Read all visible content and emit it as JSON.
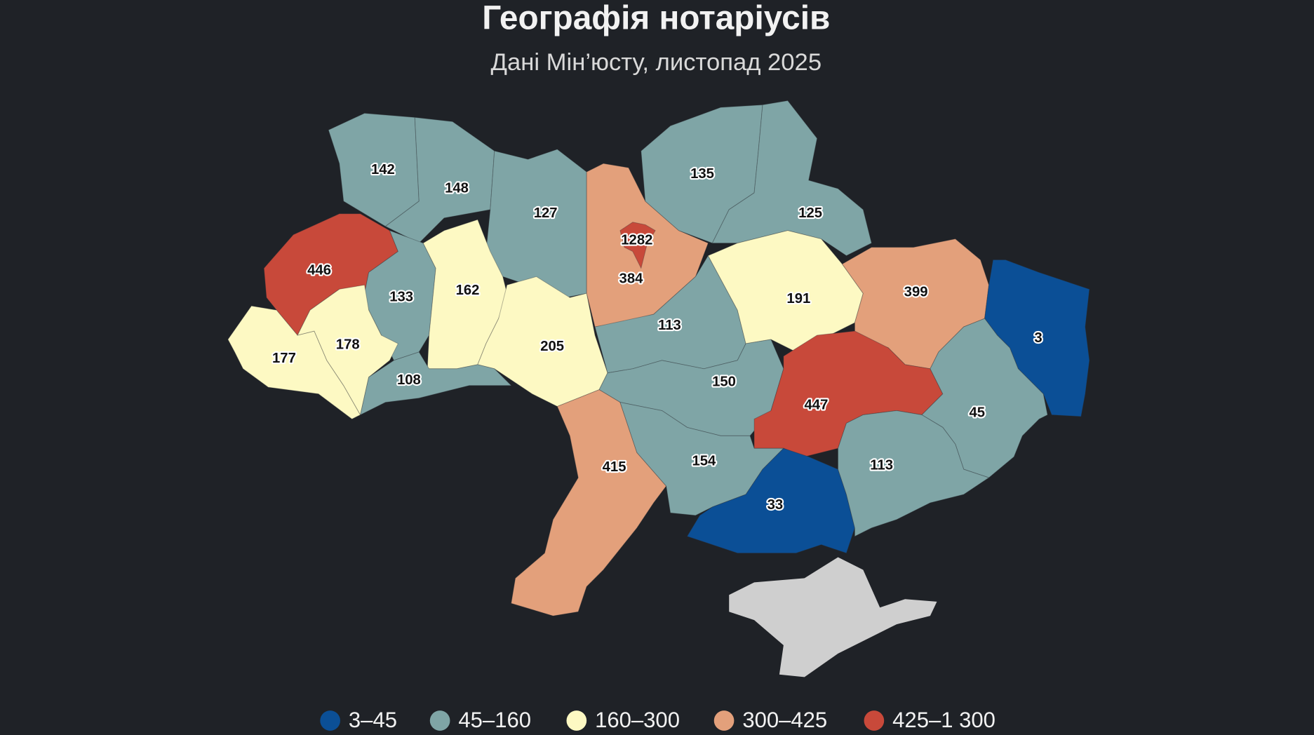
{
  "title": "Географія нотаріусів",
  "subtitle": "Дані Мін’юсту, листопад 2025",
  "legend": [
    {
      "label": "3–45",
      "color": "#0b4f96"
    },
    {
      "label": "45–160",
      "color": "#7fa5a6"
    },
    {
      "label": "160–300",
      "color": "#fdf9c3"
    },
    {
      "label": "300–425",
      "color": "#e3a07b"
    },
    {
      "label": "425–1 300",
      "color": "#c8493a"
    }
  ],
  "regions": [
    {
      "value": 142,
      "color": "#7fa5a6"
    },
    {
      "value": 148,
      "color": "#7fa5a6"
    },
    {
      "value": 127,
      "color": "#7fa5a6"
    },
    {
      "value": 384,
      "color": "#e3a07b"
    },
    {
      "value": 135,
      "color": "#7fa5a6"
    },
    {
      "value": 125,
      "color": "#7fa5a6"
    },
    {
      "value": 446,
      "color": "#c8493a"
    },
    {
      "value": 133,
      "color": "#7fa5a6"
    },
    {
      "value": 162,
      "color": "#fdf9c3"
    },
    {
      "value": 205,
      "color": "#fdf9c3"
    },
    {
      "value": 113,
      "color": "#7fa5a6"
    },
    {
      "value": 191,
      "color": "#fdf9c3"
    },
    {
      "value": 399,
      "color": "#e3a07b"
    },
    {
      "value": 3,
      "color": "#0b4f96"
    },
    {
      "value": 177,
      "color": "#fdf9c3"
    },
    {
      "value": 178,
      "color": "#fdf9c3"
    },
    {
      "value": 108,
      "color": "#7fa5a6"
    },
    {
      "value": 150,
      "color": "#7fa5a6"
    },
    {
      "value": 447,
      "color": "#c8493a"
    },
    {
      "value": 45,
      "color": "#7fa5a6"
    },
    {
      "value": 415,
      "color": "#e3a07b"
    },
    {
      "value": 154,
      "color": "#7fa5a6"
    },
    {
      "value": 33,
      "color": "#0b4f96"
    },
    {
      "value": 113,
      "color": "#7fa5a6"
    },
    {
      "value": 1282,
      "color": "#c8493a"
    }
  ]
}
